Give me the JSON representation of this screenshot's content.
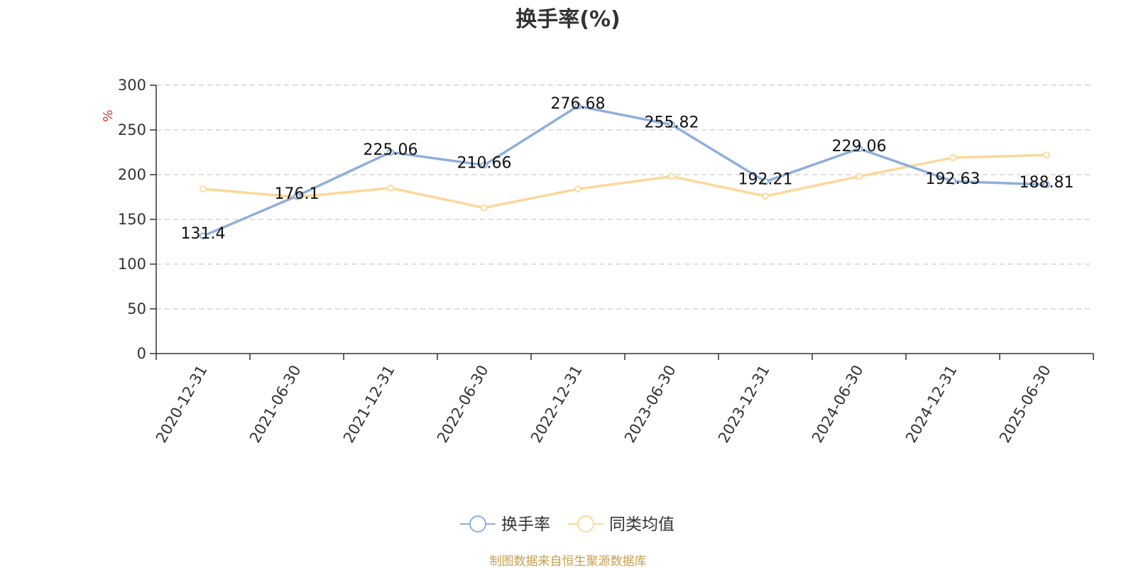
{
  "chart_data": {
    "type": "line",
    "title": "换手率(%)",
    "unit_label": "%",
    "categories": [
      "2020-12-31",
      "2021-06-30",
      "2021-12-31",
      "2022-06-30",
      "2022-12-31",
      "2023-06-30",
      "2023-12-31",
      "2024-06-30",
      "2024-12-31",
      "2025-06-30"
    ],
    "ylim": [
      0,
      300
    ],
    "yticks": [
      0,
      50,
      100,
      150,
      200,
      250,
      300
    ],
    "grid": true,
    "legend_position": "bottom-center",
    "series": [
      {
        "name": "换手率",
        "color": "#8eaedb",
        "values": [
          131.4,
          176.1,
          225.06,
          210.66,
          276.68,
          255.82,
          192.21,
          229.06,
          192.63,
          188.81
        ],
        "labels": [
          "131.4",
          "176.1",
          "225.06",
          "210.66",
          "276.68",
          "255.82",
          "192.21",
          "229.06",
          "192.63",
          "188.81"
        ]
      },
      {
        "name": "同类均值",
        "color": "#fbd899",
        "values": [
          184,
          175,
          185,
          163,
          184,
          198,
          176,
          198,
          219,
          222
        ]
      }
    ],
    "source": "制图数据来自恒生聚源数据库",
    "source_color": "#c8a04a",
    "unit_color": "#e0342b"
  }
}
